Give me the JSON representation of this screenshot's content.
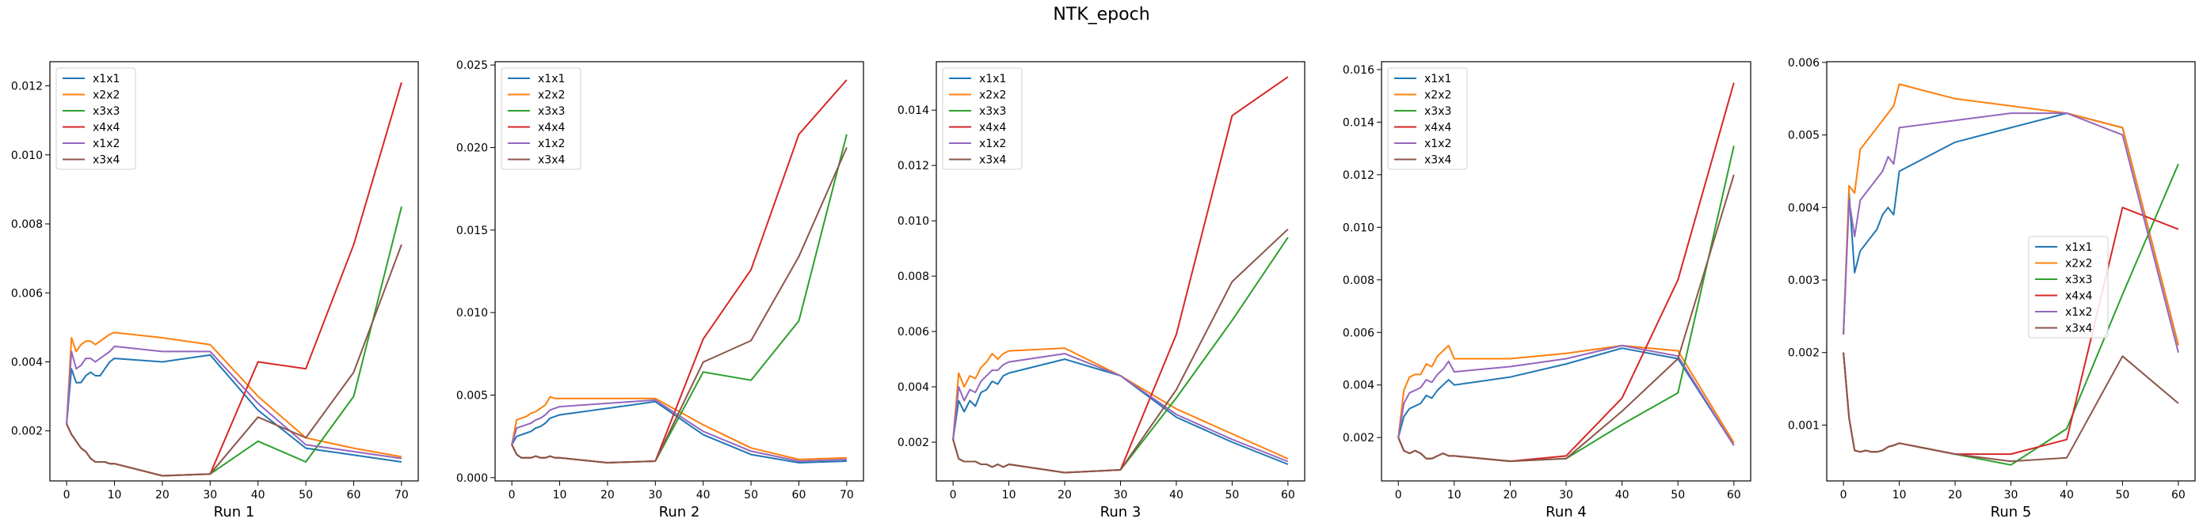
{
  "figure": {
    "title": "NTK_epoch"
  },
  "series_colors": {
    "x1x1": "#1f77b4",
    "x2x2": "#ff7f0e",
    "x3x3": "#2ca02c",
    "x4x4": "#d62728",
    "x1x2": "#9467bd",
    "x3x4": "#8c564b"
  },
  "chart_data": [
    {
      "type": "line",
      "xlabel": "Run 1",
      "xlim": [
        -3.5,
        73.5
      ],
      "ylim": [
        0.00055,
        0.0127
      ],
      "xticks": [
        0,
        10,
        20,
        30,
        40,
        50,
        60,
        70
      ],
      "yticks": [
        0.002,
        0.004,
        0.006,
        0.008,
        0.01,
        0.012
      ],
      "ytick_labels": [
        "0.002",
        "0.004",
        "0.006",
        "0.008",
        "0.010",
        "0.012"
      ],
      "legend": "upper left",
      "x": [
        0,
        1,
        2,
        3,
        4,
        5,
        6,
        7,
        8,
        9,
        10,
        20,
        30,
        40,
        50,
        60,
        70
      ],
      "series": [
        {
          "name": "x1x1",
          "values": [
            0.0022,
            0.0038,
            0.0034,
            0.0034,
            0.0036,
            0.0037,
            0.0036,
            0.0036,
            0.0038,
            0.004,
            0.0041,
            0.004,
            0.0042,
            0.0026,
            0.0015,
            0.0013,
            0.0011
          ]
        },
        {
          "name": "x2x2",
          "values": [
            0.0022,
            0.0047,
            0.0043,
            0.0045,
            0.0046,
            0.0046,
            0.0045,
            0.0046,
            0.0047,
            0.0048,
            0.00485,
            0.0047,
            0.0045,
            0.003,
            0.0018,
            0.0015,
            0.00125
          ]
        },
        {
          "name": "x3x3",
          "values": [
            0.0022,
            0.0019,
            0.0017,
            0.0015,
            0.0014,
            0.0012,
            0.0011,
            0.0011,
            0.0011,
            0.00105,
            0.00105,
            0.0007,
            0.00075,
            0.0017,
            0.0011,
            0.003,
            0.0085
          ]
        },
        {
          "name": "x4x4",
          "values": [
            0.0022,
            0.0019,
            0.0017,
            0.0015,
            0.0014,
            0.0012,
            0.0011,
            0.0011,
            0.0011,
            0.00105,
            0.00105,
            0.0007,
            0.00075,
            0.004,
            0.0038,
            0.0074,
            0.0121
          ]
        },
        {
          "name": "x1x2",
          "values": [
            0.0022,
            0.0043,
            0.0038,
            0.0039,
            0.0041,
            0.0041,
            0.004,
            0.0041,
            0.0042,
            0.0043,
            0.00445,
            0.0043,
            0.0043,
            0.0028,
            0.0016,
            0.0014,
            0.0012
          ]
        },
        {
          "name": "x3x4",
          "values": [
            0.0022,
            0.0019,
            0.0017,
            0.0015,
            0.0014,
            0.0012,
            0.0011,
            0.0011,
            0.0011,
            0.00105,
            0.00105,
            0.0007,
            0.00075,
            0.0024,
            0.0018,
            0.0037,
            0.0074
          ]
        }
      ]
    },
    {
      "type": "line",
      "xlabel": "Run 2",
      "xlim": [
        -3.5,
        73.5
      ],
      "ylim": [
        -0.0002,
        0.0252
      ],
      "xticks": [
        0,
        10,
        20,
        30,
        40,
        50,
        60,
        70
      ],
      "yticks": [
        0.0,
        0.005,
        0.01,
        0.015,
        0.02,
        0.025
      ],
      "ytick_labels": [
        "0.000",
        "0.005",
        "0.010",
        "0.015",
        "0.020",
        "0.025"
      ],
      "legend": "upper left",
      "x": [
        0,
        1,
        2,
        3,
        4,
        5,
        6,
        7,
        8,
        9,
        10,
        20,
        30,
        40,
        50,
        60,
        70
      ],
      "series": [
        {
          "name": "x1x1",
          "values": [
            0.002,
            0.0025,
            0.0026,
            0.0027,
            0.0028,
            0.003,
            0.0031,
            0.0033,
            0.0036,
            0.0037,
            0.0038,
            0.0042,
            0.0046,
            0.0026,
            0.0014,
            0.0009,
            0.001
          ]
        },
        {
          "name": "x2x2",
          "values": [
            0.002,
            0.0035,
            0.0036,
            0.0037,
            0.0039,
            0.004,
            0.0042,
            0.0044,
            0.0049,
            0.0048,
            0.0048,
            0.0048,
            0.0048,
            0.0032,
            0.0018,
            0.0011,
            0.0012
          ]
        },
        {
          "name": "x3x3",
          "values": [
            0.002,
            0.0014,
            0.0012,
            0.0012,
            0.0012,
            0.0013,
            0.0012,
            0.0012,
            0.0013,
            0.0012,
            0.0012,
            0.0009,
            0.001,
            0.0064,
            0.0059,
            0.0095,
            0.0208
          ]
        },
        {
          "name": "x4x4",
          "values": [
            0.002,
            0.0014,
            0.0012,
            0.0012,
            0.0012,
            0.0013,
            0.0012,
            0.0012,
            0.0013,
            0.0012,
            0.0012,
            0.0009,
            0.001,
            0.0084,
            0.0126,
            0.0208,
            0.0241
          ]
        },
        {
          "name": "x1x2",
          "values": [
            0.002,
            0.003,
            0.0031,
            0.0032,
            0.0033,
            0.0035,
            0.0036,
            0.0038,
            0.0041,
            0.0042,
            0.0043,
            0.0045,
            0.0047,
            0.0028,
            0.0016,
            0.001,
            0.0011
          ]
        },
        {
          "name": "x3x4",
          "values": [
            0.002,
            0.0014,
            0.0012,
            0.0012,
            0.0012,
            0.0013,
            0.0012,
            0.0012,
            0.0013,
            0.0012,
            0.0012,
            0.0009,
            0.001,
            0.007,
            0.0083,
            0.0134,
            0.02
          ]
        }
      ]
    },
    {
      "type": "line",
      "xlabel": "Run 3",
      "xlim": [
        -3,
        63
      ],
      "ylim": [
        0.0006,
        0.01575
      ],
      "xticks": [
        0,
        10,
        20,
        30,
        40,
        50,
        60
      ],
      "yticks": [
        0.002,
        0.004,
        0.006,
        0.008,
        0.01,
        0.012,
        0.014
      ],
      "ytick_labels": [
        "0.002",
        "0.004",
        "0.006",
        "0.008",
        "0.010",
        "0.012",
        "0.014"
      ],
      "legend": "upper left",
      "x": [
        0,
        1,
        2,
        3,
        4,
        5,
        6,
        7,
        8,
        9,
        10,
        20,
        30,
        40,
        50,
        60
      ],
      "series": [
        {
          "name": "x1x1",
          "values": [
            0.0021,
            0.0035,
            0.0031,
            0.0035,
            0.0033,
            0.0038,
            0.0039,
            0.0042,
            0.0041,
            0.0044,
            0.0045,
            0.005,
            0.0044,
            0.0029,
            0.002,
            0.0012
          ]
        },
        {
          "name": "x2x2",
          "values": [
            0.0021,
            0.0045,
            0.004,
            0.0044,
            0.0043,
            0.0047,
            0.0049,
            0.0052,
            0.005,
            0.0052,
            0.0053,
            0.0054,
            0.0044,
            0.0032,
            0.0023,
            0.0014
          ]
        },
        {
          "name": "x3x3",
          "values": [
            0.0021,
            0.0014,
            0.0013,
            0.0013,
            0.0013,
            0.0012,
            0.0012,
            0.0011,
            0.0012,
            0.0011,
            0.0012,
            0.0009,
            0.001,
            0.0036,
            0.0064,
            0.0094
          ]
        },
        {
          "name": "x4x4",
          "values": [
            0.0021,
            0.0014,
            0.0013,
            0.0013,
            0.0013,
            0.0012,
            0.0012,
            0.0011,
            0.0012,
            0.0011,
            0.0012,
            0.0009,
            0.001,
            0.0059,
            0.0138,
            0.0152
          ]
        },
        {
          "name": "x1x2",
          "values": [
            0.0021,
            0.004,
            0.0035,
            0.0039,
            0.0038,
            0.0042,
            0.0044,
            0.0046,
            0.0046,
            0.0048,
            0.0049,
            0.0052,
            0.0044,
            0.003,
            0.0021,
            0.0013
          ]
        },
        {
          "name": "x3x4",
          "values": [
            0.0021,
            0.0014,
            0.0013,
            0.0013,
            0.0013,
            0.0012,
            0.0012,
            0.0011,
            0.0012,
            0.0011,
            0.0012,
            0.0009,
            0.001,
            0.0039,
            0.0078,
            0.0097
          ]
        }
      ]
    },
    {
      "type": "line",
      "xlabel": "Run 4",
      "xlim": [
        -3,
        63
      ],
      "ylim": [
        0.00035,
        0.0163
      ],
      "xticks": [
        0,
        10,
        20,
        30,
        40,
        50,
        60
      ],
      "yticks": [
        0.002,
        0.004,
        0.006,
        0.008,
        0.01,
        0.012,
        0.014,
        0.016
      ],
      "ytick_labels": [
        "0.002",
        "0.004",
        "0.006",
        "0.008",
        "0.010",
        "0.012",
        "0.014",
        "0.016"
      ],
      "legend": "upper left",
      "x": [
        0,
        1,
        2,
        3,
        4,
        5,
        6,
        7,
        8,
        9,
        10,
        20,
        30,
        40,
        50,
        60
      ],
      "series": [
        {
          "name": "x1x1",
          "values": [
            0.002,
            0.0028,
            0.0031,
            0.0032,
            0.0033,
            0.0036,
            0.0035,
            0.0038,
            0.004,
            0.0042,
            0.004,
            0.0043,
            0.0048,
            0.0054,
            0.005,
            0.0017
          ]
        },
        {
          "name": "x2x2",
          "values": [
            0.002,
            0.0038,
            0.0043,
            0.0044,
            0.0044,
            0.0048,
            0.0047,
            0.0051,
            0.0053,
            0.0055,
            0.005,
            0.005,
            0.0052,
            0.0055,
            0.0053,
            0.0018
          ]
        },
        {
          "name": "x3x3",
          "values": [
            0.002,
            0.0015,
            0.0014,
            0.0015,
            0.0014,
            0.0012,
            0.0012,
            0.0013,
            0.0014,
            0.0013,
            0.0013,
            0.0011,
            0.0012,
            0.0025,
            0.0037,
            0.0131
          ]
        },
        {
          "name": "x4x4",
          "values": [
            0.002,
            0.0015,
            0.0014,
            0.0015,
            0.0014,
            0.0012,
            0.0012,
            0.0013,
            0.0014,
            0.0013,
            0.0013,
            0.0011,
            0.0013,
            0.0035,
            0.008,
            0.0155
          ]
        },
        {
          "name": "x1x2",
          "values": [
            0.002,
            0.0033,
            0.0037,
            0.0038,
            0.0039,
            0.0042,
            0.0041,
            0.0044,
            0.0046,
            0.0049,
            0.0045,
            0.0047,
            0.005,
            0.0055,
            0.0051,
            0.0017
          ]
        },
        {
          "name": "x3x4",
          "values": [
            0.002,
            0.0015,
            0.0014,
            0.0015,
            0.0014,
            0.0012,
            0.0012,
            0.0013,
            0.0014,
            0.0013,
            0.0013,
            0.0011,
            0.0012,
            0.003,
            0.005,
            0.012
          ]
        }
      ]
    },
    {
      "type": "line",
      "xlabel": "Run 5",
      "xlim": [
        -3,
        63
      ],
      "ylim": [
        0.00023,
        0.00601
      ],
      "xticks": [
        0,
        10,
        20,
        30,
        40,
        50,
        60
      ],
      "yticks": [
        0.001,
        0.002,
        0.003,
        0.004,
        0.005,
        0.006
      ],
      "ytick_labels": [
        "0.001",
        "0.002",
        "0.003",
        "0.004",
        "0.005",
        "0.006"
      ],
      "legend": "center right",
      "x": [
        0,
        1,
        2,
        3,
        4,
        5,
        6,
        7,
        8,
        9,
        10,
        20,
        30,
        40,
        50,
        60
      ],
      "series": [
        {
          "name": "x1x1",
          "values": [
            0.00225,
            0.0042,
            0.0031,
            0.0034,
            0.0035,
            0.0036,
            0.0037,
            0.0039,
            0.004,
            0.0039,
            0.0045,
            0.0049,
            0.0051,
            0.0053,
            0.0051,
            0.0021
          ]
        },
        {
          "name": "x2x2",
          "values": [
            0.00225,
            0.0043,
            0.0042,
            0.0048,
            0.0049,
            0.005,
            0.0051,
            0.0052,
            0.0053,
            0.0054,
            0.0057,
            0.0055,
            0.0054,
            0.0053,
            0.0051,
            0.0021
          ]
        },
        {
          "name": "x3x3",
          "values": [
            0.002,
            0.0011,
            0.00065,
            0.00063,
            0.00065,
            0.00063,
            0.00063,
            0.00065,
            0.0007,
            0.00072,
            0.00075,
            0.0006,
            0.00045,
            0.00095,
            0.0028,
            0.0046
          ]
        },
        {
          "name": "x4x4",
          "values": [
            0.002,
            0.0011,
            0.00065,
            0.00063,
            0.00065,
            0.00063,
            0.00063,
            0.00065,
            0.0007,
            0.00072,
            0.00075,
            0.0006,
            0.0006,
            0.0008,
            0.004,
            0.0037
          ]
        },
        {
          "name": "x1x2",
          "values": [
            0.00225,
            0.0041,
            0.0036,
            0.0041,
            0.0042,
            0.0043,
            0.0044,
            0.0045,
            0.0047,
            0.0046,
            0.0051,
            0.0052,
            0.0053,
            0.0053,
            0.005,
            0.002
          ]
        },
        {
          "name": "x3x4",
          "values": [
            0.002,
            0.0011,
            0.00065,
            0.00063,
            0.00065,
            0.00063,
            0.00063,
            0.00065,
            0.0007,
            0.00072,
            0.00075,
            0.0006,
            0.0005,
            0.00055,
            0.00195,
            0.0013
          ]
        }
      ]
    }
  ]
}
